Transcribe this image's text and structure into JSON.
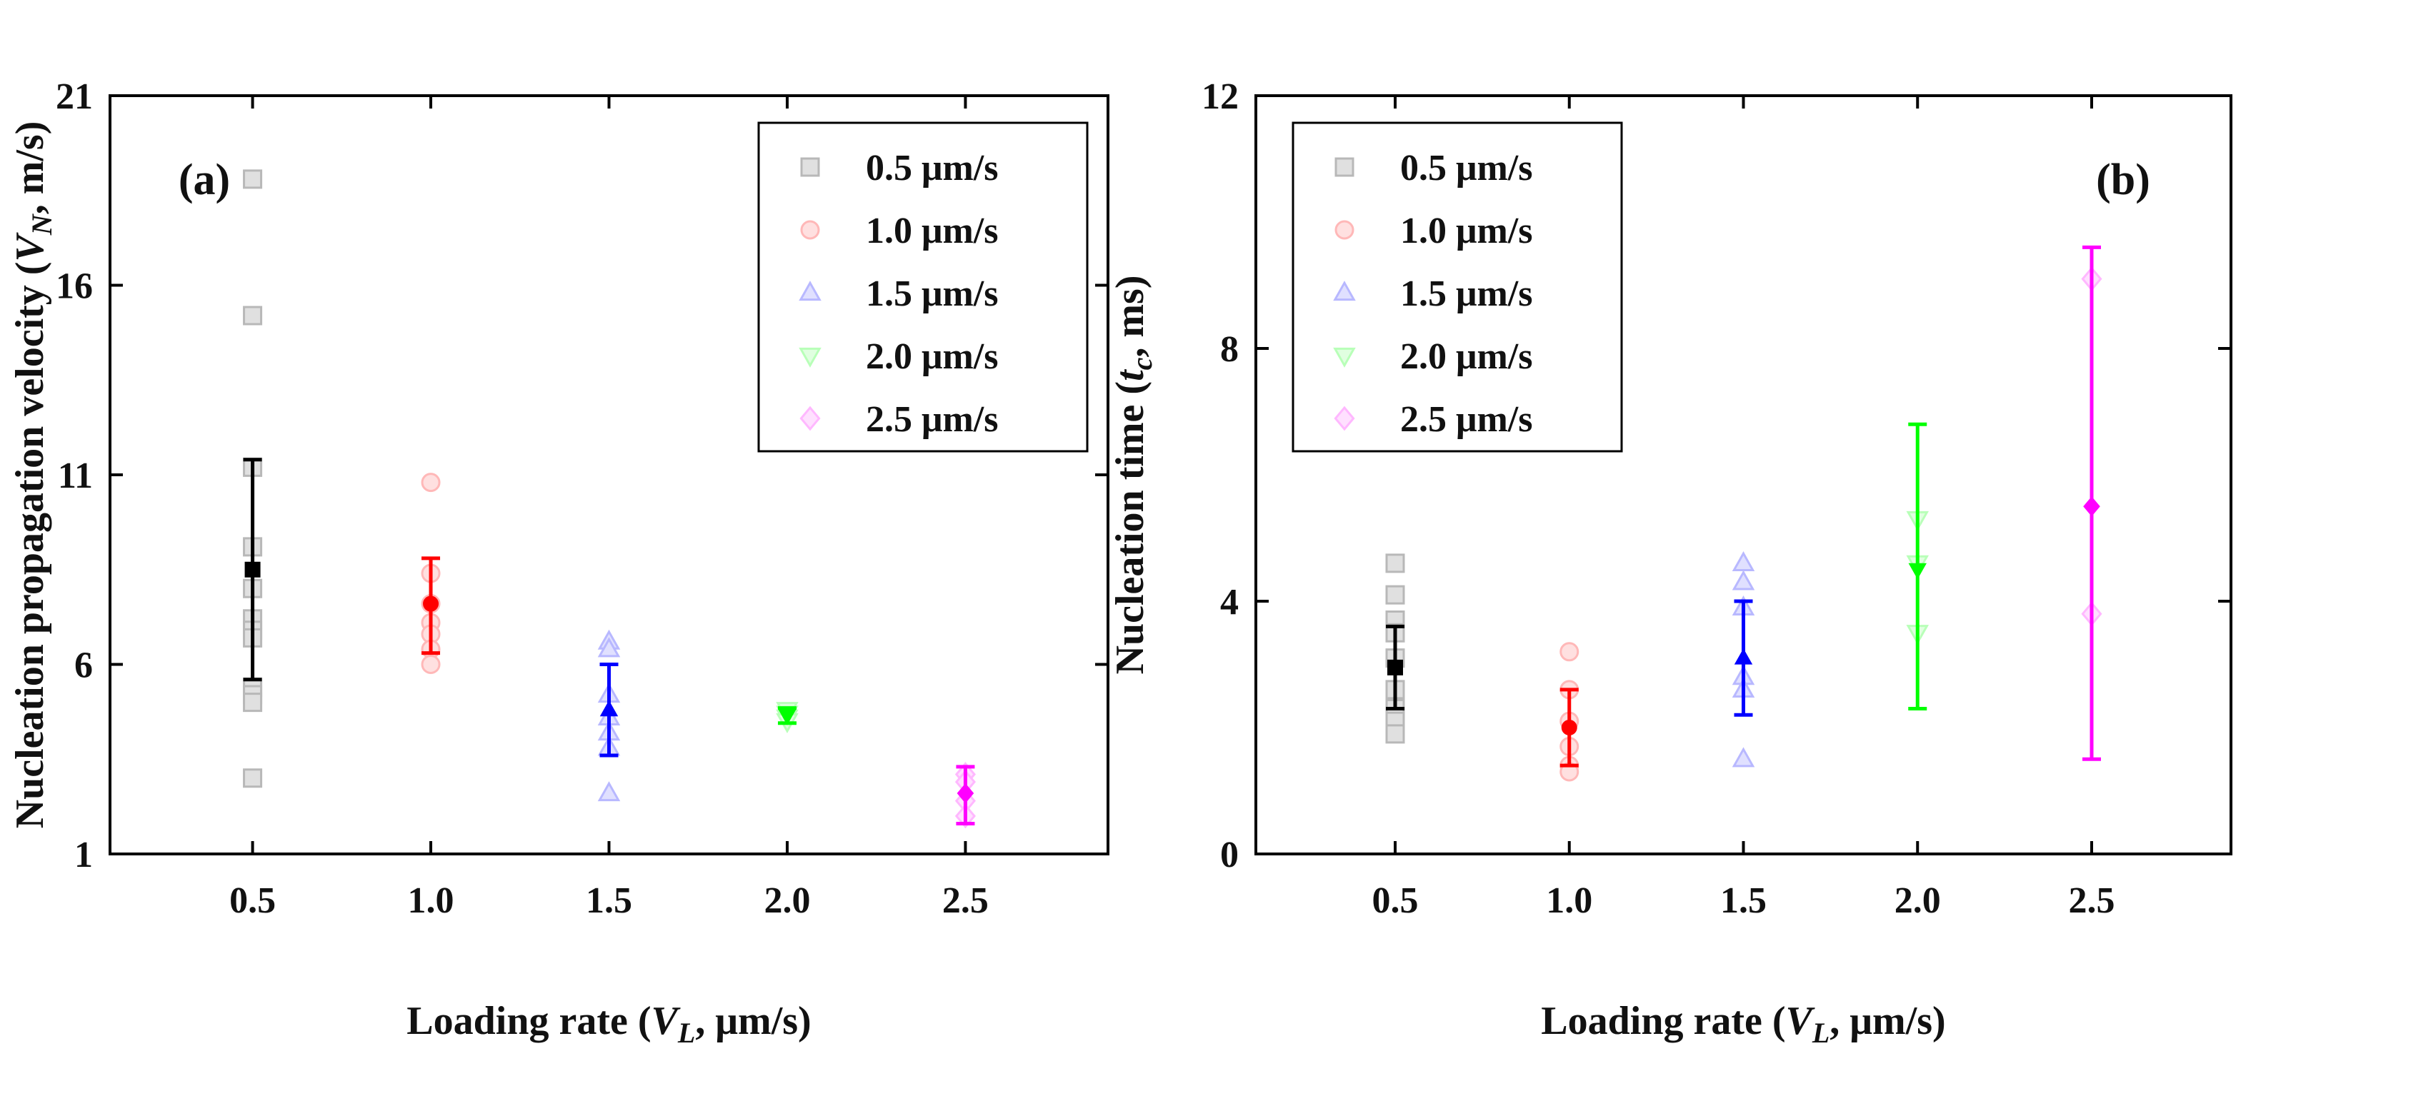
{
  "chart_data": [
    {
      "type": "scatter",
      "panel_label": "(a)",
      "xlabel_parts": [
        "Loading rate (",
        "V",
        "L",
        ", μm/s)"
      ],
      "ylabel_parts": [
        "Nucleation  propagation velocity (",
        "V",
        "N",
        ", m/s)"
      ],
      "xlim": [
        0.1,
        2.9
      ],
      "ylim": [
        1,
        21
      ],
      "xticks": [
        0.5,
        1.0,
        1.5,
        2.0,
        2.5
      ],
      "xtick_labels": [
        "0.5",
        "1.0",
        "1.5",
        "2.0",
        "2.5"
      ],
      "yticks": [
        1,
        6,
        11,
        16,
        21
      ],
      "ytick_labels": [
        "1",
        "6",
        "11",
        "16",
        "21"
      ],
      "legend_position": "top-right",
      "series": [
        {
          "name": "0.5 μm/s",
          "color": "#000000",
          "marker": "square",
          "x": 0.5,
          "points": [
            18.8,
            15.2,
            11.2,
            9.1,
            8.0,
            7.2,
            6.9,
            6.7,
            5.4,
            5.2,
            5.0,
            3.0
          ],
          "mean": 8.5,
          "err_low": 5.6,
          "err_high": 11.4
        },
        {
          "name": "1.0 μm/s",
          "color": "#ff0000",
          "marker": "circle",
          "x": 1.0,
          "points": [
            10.8,
            8.4,
            7.6,
            7.1,
            6.8,
            6.4,
            6.0
          ],
          "mean": 7.6,
          "err_low": 6.3,
          "err_high": 8.8
        },
        {
          "name": "1.5 μm/s",
          "color": "#0000ff",
          "marker": "triangle-up",
          "x": 1.5,
          "points": [
            6.6,
            6.4,
            5.2,
            4.6,
            4.2,
            3.8,
            2.6
          ],
          "mean": 4.8,
          "err_low": 3.6,
          "err_high": 6.0
        },
        {
          "name": "2.0 μm/s",
          "color": "#00ff00",
          "marker": "triangle-down",
          "x": 2.0,
          "points": [
            4.8,
            4.7,
            4.6,
            4.5
          ],
          "mean": 4.65,
          "err_low": 4.45,
          "err_high": 4.85
        },
        {
          "name": "2.5 μm/s",
          "color": "#ff00ff",
          "marker": "diamond",
          "x": 2.5,
          "points": [
            3.1,
            2.9,
            2.4,
            2.0
          ],
          "mean": 2.6,
          "err_low": 1.8,
          "err_high": 3.3
        }
      ]
    },
    {
      "type": "scatter",
      "panel_label": "(b)",
      "xlabel_parts": [
        "Loading rate (",
        "V",
        "L",
        ", μm/s)"
      ],
      "ylabel_parts": [
        "Nucleation time (",
        "t",
        "c",
        ", ms)"
      ],
      "xlim": [
        0.1,
        2.9
      ],
      "ylim": [
        0,
        12
      ],
      "xticks": [
        0.5,
        1.0,
        1.5,
        2.0,
        2.5
      ],
      "xtick_labels": [
        "0.5",
        "1.0",
        "1.5",
        "2.0",
        "2.5"
      ],
      "yticks": [
        0,
        4,
        8,
        12
      ],
      "ytick_labels": [
        "0",
        "4",
        "8",
        "12"
      ],
      "legend_position": "top-left",
      "series": [
        {
          "name": "0.5 μm/s",
          "color": "#000000",
          "marker": "square",
          "x": 0.5,
          "points": [
            4.6,
            4.1,
            3.7,
            3.5,
            3.1,
            2.6,
            2.3,
            2.1,
            1.9
          ],
          "mean": 2.95,
          "err_low": 2.3,
          "err_high": 3.6
        },
        {
          "name": "1.0 μm/s",
          "color": "#ff0000",
          "marker": "circle",
          "x": 1.0,
          "points": [
            3.2,
            2.6,
            2.1,
            1.7,
            1.4,
            1.3
          ],
          "mean": 2.0,
          "err_low": 1.4,
          "err_high": 2.6
        },
        {
          "name": "1.5 μm/s",
          "color": "#0000ff",
          "marker": "triangle-up",
          "x": 1.5,
          "points": [
            4.6,
            4.3,
            3.9,
            2.8,
            2.6,
            1.5
          ],
          "mean": 3.1,
          "err_low": 2.2,
          "err_high": 4.0
        },
        {
          "name": "2.0 μm/s",
          "color": "#00ff00",
          "marker": "triangle-down",
          "x": 2.0,
          "points": [
            5.3,
            4.6,
            3.5
          ],
          "mean": 4.5,
          "err_low": 2.3,
          "err_high": 6.8
        },
        {
          "name": "2.5 μm/s",
          "color": "#ff00ff",
          "marker": "diamond",
          "x": 2.5,
          "points": [
            9.1,
            3.8
          ],
          "mean": 5.5,
          "err_low": 1.5,
          "err_high": 9.6
        }
      ]
    }
  ]
}
